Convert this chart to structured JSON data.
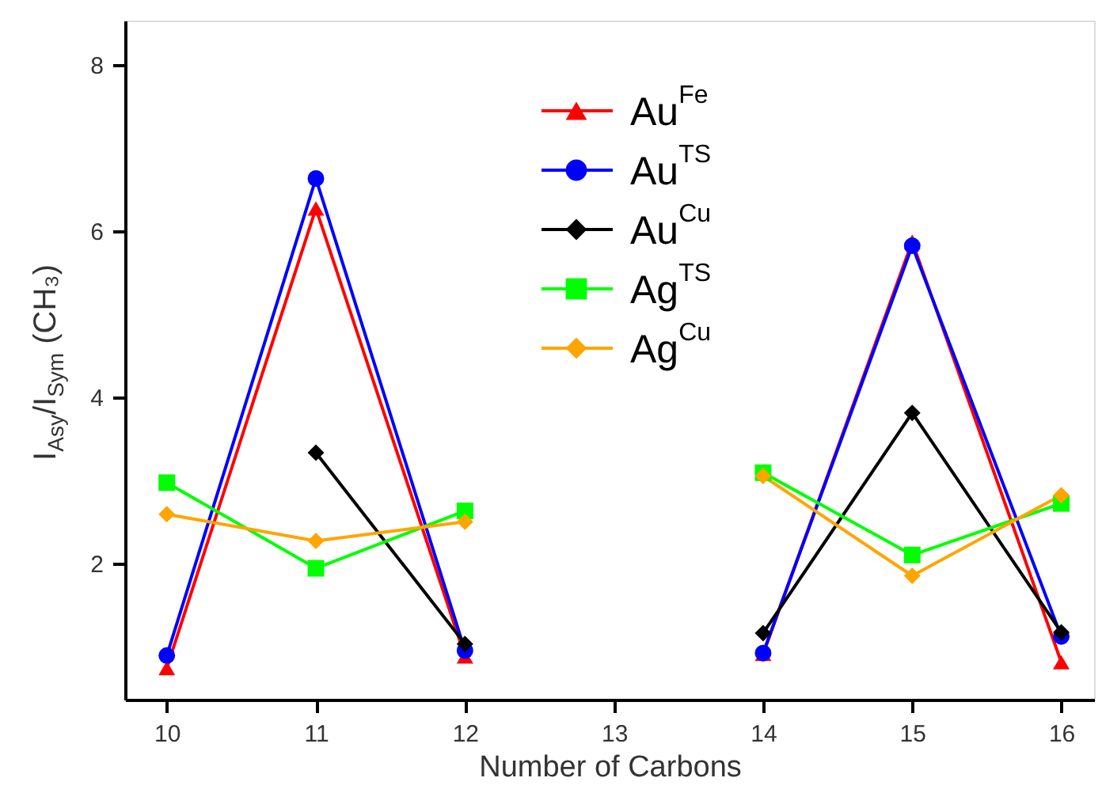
{
  "chart_data": {
    "type": "line",
    "xlabel": "Number of Carbons",
    "ylabel": "I$_{Asy}$/I$_{Sym}$ (CH₃)",
    "x": [
      10,
      11,
      12,
      13,
      14,
      15,
      16
    ],
    "series": [
      {
        "name": "Au$^{Fe}$",
        "color": "#ff0000",
        "marker": "triangle",
        "values": [
          0.74,
          6.27,
          0.88,
          null,
          0.91,
          5.87,
          0.81
        ]
      },
      {
        "name": "Au$^{TS}$",
        "color": "#0000ff",
        "marker": "circle",
        "values": [
          0.89,
          6.63,
          0.95,
          null,
          0.92,
          5.82,
          1.12
        ]
      },
      {
        "name": "Au$^{Cu}$",
        "color": "#000000",
        "marker": "diamond",
        "values": [
          null,
          3.33,
          1.03,
          null,
          1.16,
          3.81,
          1.17
        ]
      },
      {
        "name": "Ag$^{TS}$",
        "color": "#00ff00",
        "marker": "square",
        "values": [
          2.97,
          1.94,
          2.63,
          null,
          3.09,
          2.1,
          2.72
        ]
      },
      {
        "name": "Ag$^{Cu}$",
        "color": "#ffa500",
        "marker": "diamond",
        "values": [
          2.59,
          2.27,
          2.5,
          null,
          3.05,
          1.85,
          2.82
        ]
      }
    ],
    "xlim": [
      9.72,
      16.22
    ],
    "ylim": [
      0.36,
      8.53
    ],
    "xticks": [
      10,
      11,
      12,
      13,
      14,
      15,
      16
    ],
    "yticks": [
      2,
      4,
      6,
      8
    ],
    "grid": false,
    "legend": "top",
    "line_style": "solid"
  }
}
